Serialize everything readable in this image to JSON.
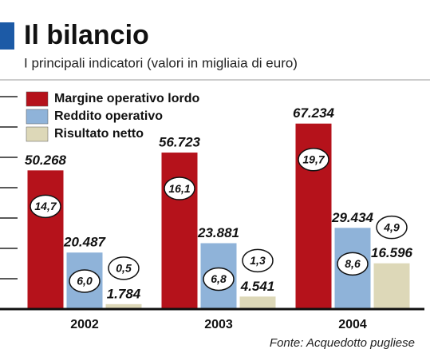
{
  "chart_data": {
    "type": "bar",
    "title": "Il bilancio",
    "subtitle": "I principali indicatori (valori in migliaia di euro)",
    "source": "Fonte: Acquedotto pugliese",
    "categories": [
      "2002",
      "2003",
      "2004"
    ],
    "series": [
      {
        "name": "Margine operativo lordo",
        "color": "#b5121b",
        "values": [
          50268,
          56723,
          67234
        ],
        "value_labels": [
          "50.268",
          "56.723",
          "67.234"
        ],
        "ratios": [
          14.7,
          16.1,
          19.7
        ],
        "ratio_labels": [
          "14,7",
          "16,1",
          "19,7"
        ]
      },
      {
        "name": "Reddito operativo",
        "color": "#8fb3d9",
        "values": [
          20487,
          23881,
          29434
        ],
        "value_labels": [
          "20.487",
          "23.881",
          "29.434"
        ],
        "ratios": [
          6.0,
          6.8,
          8.6
        ],
        "ratio_labels": [
          "6,0",
          "6,8",
          "8,6"
        ]
      },
      {
        "name": "Risultato netto",
        "color": "#ddd8b8",
        "values": [
          1784,
          4541,
          16596
        ],
        "value_labels": [
          "1.784",
          "4.541",
          "16.596"
        ],
        "ratios": [
          0.5,
          1.3,
          4.9
        ],
        "ratio_labels": [
          "0,5",
          "1,3",
          "4,9"
        ]
      }
    ],
    "ylim": [
      0,
      77000
    ],
    "yticks": [
      0,
      11000,
      22000,
      33000,
      44000,
      55000,
      66000,
      77000
    ]
  }
}
